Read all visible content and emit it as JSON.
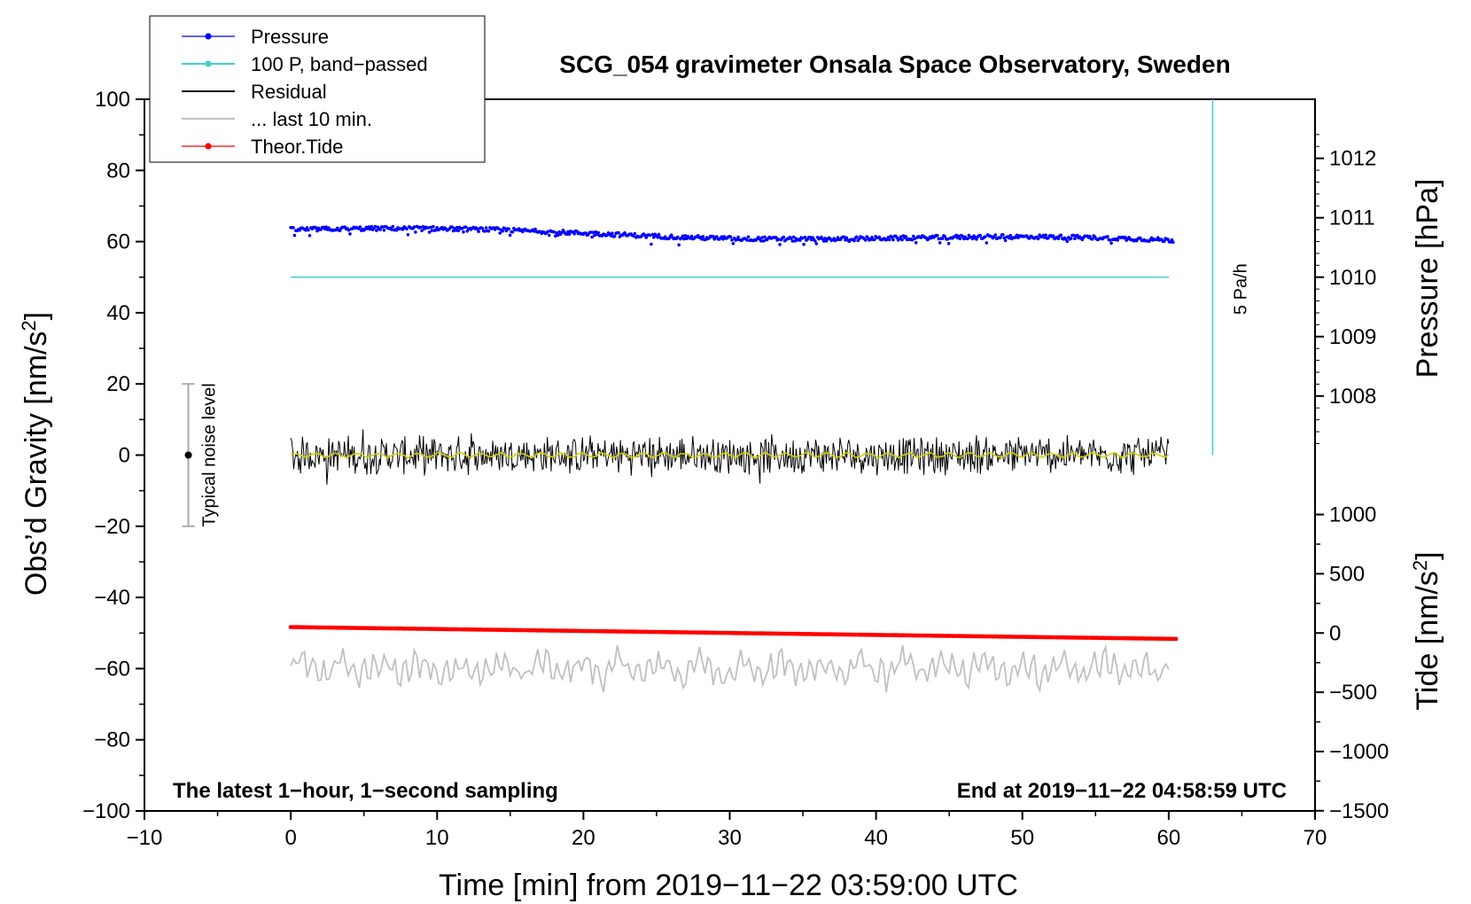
{
  "chart_data": {
    "type": "line",
    "title": "SCG_054 gravimeter Onsala Space Observatory, Sweden",
    "xlabel": "Time [min] from 2019−11−22 03:59:00 UTC",
    "ylabel_left": "Obs’d Gravity [nm/s",
    "ylabel_left_sup": "2",
    "ylabel_left_end": "]",
    "ylabel_right_pressure": "Pressure [hPa]",
    "ylabel_right_tide": "Tide [nm/s",
    "ylabel_right_tide_sup": "2",
    "ylabel_right_tide_end": "]",
    "xlim": [
      -10,
      70
    ],
    "ylim_left": [
      -100,
      100
    ],
    "x_ticks": [
      "−10",
      "0",
      "10",
      "20",
      "30",
      "40",
      "50",
      "60",
      "70"
    ],
    "x_tick_values": [
      -10,
      0,
      10,
      20,
      30,
      40,
      50,
      60,
      70
    ],
    "y_left_ticks": [
      "100",
      "80",
      "60",
      "40",
      "20",
      "0",
      "−20",
      "−40",
      "−60",
      "−80",
      "−100"
    ],
    "y_left_tick_values": [
      100,
      80,
      60,
      40,
      20,
      0,
      -20,
      -40,
      -60,
      -80,
      -100
    ],
    "pressure_ticks": [
      "1012",
      "1011",
      "1010",
      "1009",
      "1008"
    ],
    "pressure_tick_values": [
      1012,
      1011,
      1010,
      1009,
      1008
    ],
    "tide_ticks": [
      "1000",
      "500",
      "0",
      "−500",
      "−1000",
      "−1500"
    ],
    "tide_tick_values": [
      1000,
      500,
      0,
      -500,
      -1000,
      -1500
    ],
    "pressure_scale": {
      "value_1010_at_gravity": 50,
      "gravity_per_hPa": 16.7
    },
    "tide_scale": {
      "value_0_at_gravity": -50,
      "gravity_per_1000": 33.3
    },
    "series": [
      {
        "name": "Pressure",
        "unit": "hPa",
        "color": "#0000ff",
        "x_range": [
          0,
          60.3
        ],
        "start": 1010.8,
        "end": 1010.6,
        "style": "dots"
      },
      {
        "name": "100 P, band−passed",
        "color": "#40d0d0",
        "level_gravity": 50,
        "x_range": [
          0,
          60
        ],
        "style": "line"
      },
      {
        "name": "Residual",
        "color": "#000000",
        "level_gravity": 0,
        "amplitude": 5,
        "x_range": [
          0,
          60
        ],
        "style": "line"
      },
      {
        "name": "... last 10 min.",
        "color": "#c0c0c0",
        "level_gravity": -60,
        "amplitude": 4,
        "x_range": [
          0,
          60
        ],
        "style": "line"
      },
      {
        "name": "Theor.Tide",
        "unit": "nm/s²",
        "color": "#ff0000",
        "x_range": [
          0,
          60.5
        ],
        "start": 50,
        "end": -50,
        "style": "dots"
      }
    ],
    "smoothed_residual_color": "#d0d000",
    "noise_bar": {
      "label": "Typical noise level",
      "x": -7,
      "center": 0,
      "low": -20,
      "high": 20
    },
    "rate_indicator": {
      "label": "5 Pa/h",
      "x": 63,
      "from_gravity": 0,
      "to_gravity": 100
    },
    "annotations": {
      "left": "The latest 1−hour, 1−second sampling",
      "right": "End at 2019−11−22 04:58:59 UTC"
    }
  }
}
